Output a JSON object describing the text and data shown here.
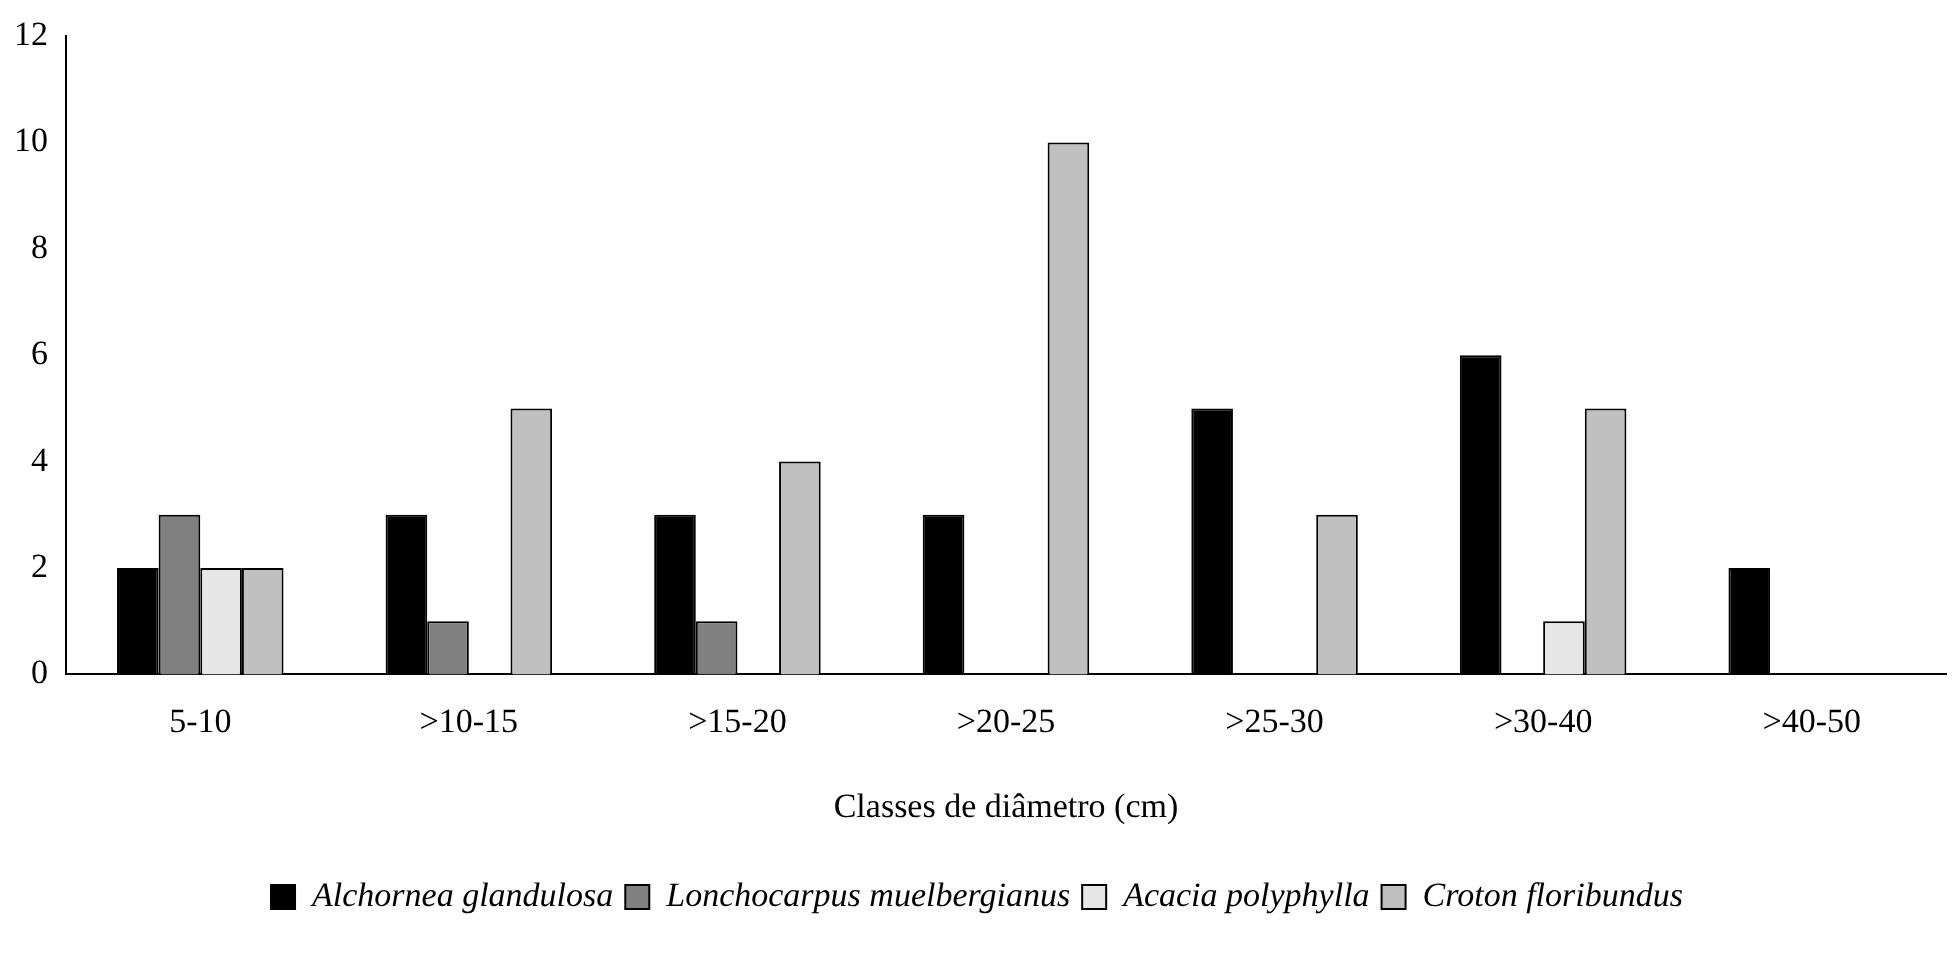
{
  "chart_data": {
    "type": "bar",
    "xlabel": "Classes de diâmetro (cm)",
    "categories": [
      "5-10",
      ">10-15",
      ">15-20",
      ">20-25",
      ">25-30",
      ">30-40",
      ">40-50"
    ],
    "series": [
      {
        "name": "Alchornea glandulosa",
        "color": "#000000",
        "values": [
          2,
          3,
          3,
          3,
          5,
          6,
          2
        ]
      },
      {
        "name": "Lonchocarpus muelbergianus",
        "color": "#808080",
        "values": [
          3,
          1,
          1,
          0,
          0,
          0,
          0
        ]
      },
      {
        "name": "Acacia polyphylla",
        "color": "#e6e6e6",
        "values": [
          2,
          0,
          0,
          0,
          0,
          1,
          0
        ]
      },
      {
        "name": "Croton floribundus",
        "color": "#c0c0c0",
        "values": [
          2,
          5,
          4,
          10,
          3,
          5,
          0
        ]
      }
    ],
    "ylim": [
      0,
      12
    ],
    "yticks": [
      0,
      2,
      4,
      6,
      8,
      10,
      12
    ],
    "grid": false,
    "legend": "bottom"
  }
}
